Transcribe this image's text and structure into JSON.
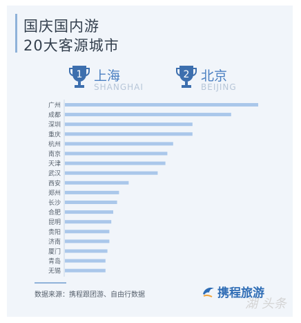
{
  "header": {
    "title_line1": "国庆国内游",
    "title_line2": "20大客源城市"
  },
  "ranks": [
    {
      "number": "1",
      "city_cn": "上海",
      "city_en": "SHANGHAI"
    },
    {
      "number": "2",
      "city_cn": "北京",
      "city_en": "BEIJING"
    }
  ],
  "chart_data": {
    "type": "bar",
    "orientation": "horizontal",
    "categories": [
      "广州",
      "成都",
      "深圳",
      "重庆",
      "杭州",
      "南京",
      "天津",
      "武汉",
      "西安",
      "郑州",
      "长沙",
      "合肥",
      "昆明",
      "贵阳",
      "济南",
      "厦门",
      "青岛",
      "无锡"
    ],
    "values": [
      100,
      86,
      66,
      66,
      56,
      53,
      52,
      48,
      33,
      28,
      27,
      25,
      24,
      23,
      23,
      22,
      21,
      21
    ],
    "title": "",
    "xlabel": "",
    "ylabel": "",
    "xlim": [
      0,
      100
    ],
    "grid": false,
    "legend": "none",
    "bar_color": "#aac7ea"
  },
  "footer": {
    "source": "数据来源：携程跟团游、自由行数据",
    "brand": "携程旅游",
    "watermark": "湖 头条"
  },
  "colors": {
    "accent": "#4a7fc1",
    "trophy": "#3d6fae",
    "bar": "#aac7ea",
    "card": "#f1f5fa"
  }
}
